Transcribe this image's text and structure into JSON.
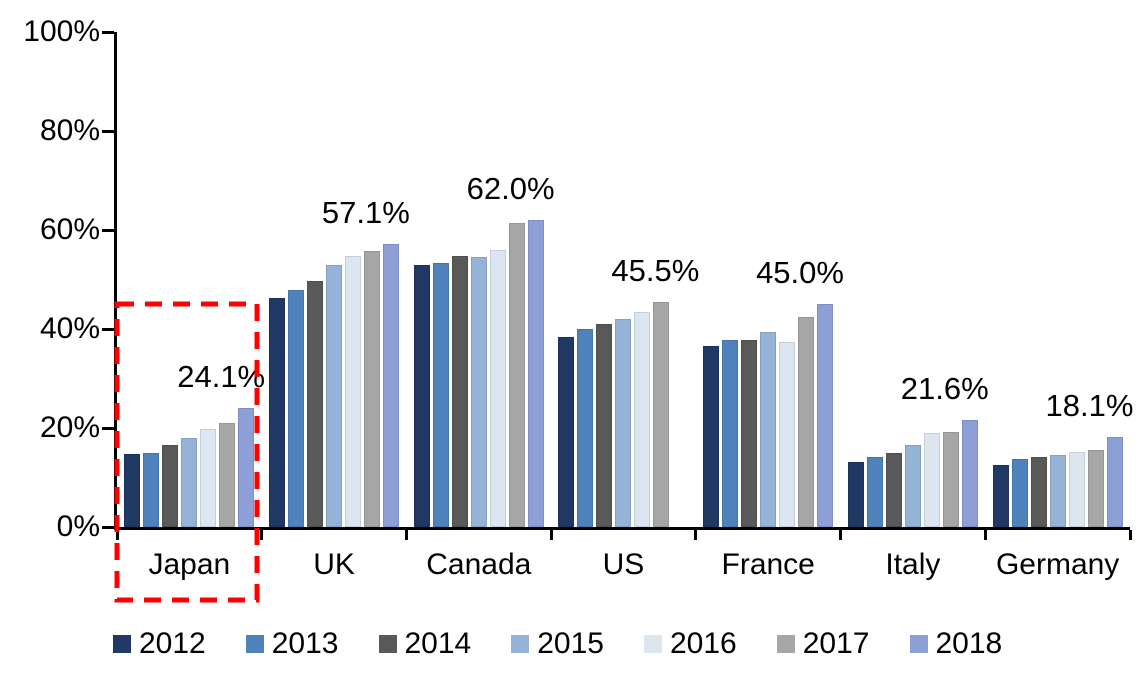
{
  "chart_data": {
    "type": "bar",
    "title": "",
    "categories": [
      "Japan",
      "UK",
      "Canada",
      "US",
      "France",
      "Italy",
      "Germany"
    ],
    "series": [
      {
        "name": "2012",
        "color": "#1F3864",
        "values": [
          14.8,
          46.3,
          53.0,
          38.4,
          36.6,
          13.2,
          12.5
        ]
      },
      {
        "name": "2013",
        "color": "#4F81BD",
        "values": [
          15.0,
          47.8,
          53.4,
          40.0,
          37.7,
          14.1,
          13.8
        ]
      },
      {
        "name": "2014",
        "color": "#595959",
        "values": [
          16.5,
          49.8,
          54.8,
          41.0,
          37.7,
          15.0,
          14.2
        ]
      },
      {
        "name": "2015",
        "color": "#95B3D7",
        "values": [
          18.0,
          53.0,
          54.5,
          42.0,
          39.3,
          16.6,
          14.6
        ]
      },
      {
        "name": "2016",
        "color": "#DCE6F1",
        "values": [
          19.8,
          54.8,
          56.0,
          43.5,
          37.4,
          19.0,
          15.2
        ]
      },
      {
        "name": "2017",
        "color": "#A6A6A6",
        "values": [
          21.0,
          55.8,
          61.5,
          45.5,
          42.4,
          19.2,
          15.6
        ]
      },
      {
        "name": "2018",
        "color": "#8C9FD6",
        "values": [
          24.1,
          57.1,
          62.0,
          null,
          45.0,
          21.6,
          18.1
        ]
      }
    ],
    "data_labels": [
      "24.1%",
      "57.1%",
      "62.0%",
      "45.5%",
      "45.0%",
      "21.6%",
      "18.1%"
    ],
    "y_axis": {
      "min": 0,
      "max": 100,
      "tick_labels": [
        "100%",
        "80%",
        "60%",
        "40%",
        "20%",
        "0%"
      ],
      "tick_values": [
        100,
        80,
        60,
        40,
        20,
        0
      ]
    },
    "legend": {
      "position": "bottom",
      "entries": [
        "2012",
        "2013",
        "2014",
        "2015",
        "2016",
        "2017",
        "2018"
      ]
    },
    "annotations": {
      "highlight_box": {
        "target_category": "Japan",
        "color": "#FF0000",
        "style": "dashed"
      }
    },
    "grid": "off"
  }
}
